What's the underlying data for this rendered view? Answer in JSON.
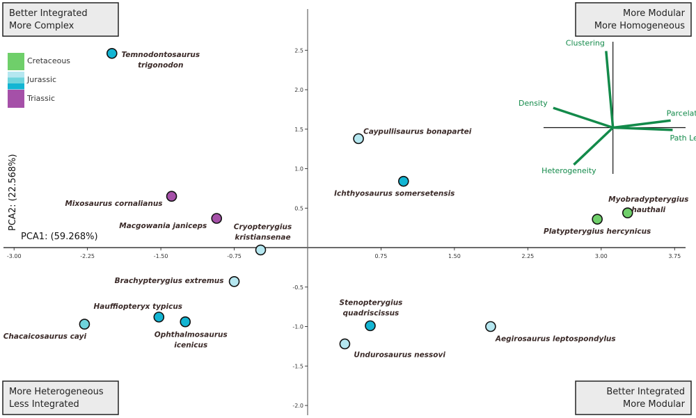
{
  "chart_data": {
    "type": "scatter",
    "xlabel": "PCA1: (59.268%)",
    "ylabel": "PCA2: (22.568%)",
    "xlim": [
      -3.0,
      3.85
    ],
    "ylim": [
      -2.1,
      3.0
    ],
    "x_ticks": [
      "-3.00",
      "-2.25",
      "-1.50",
      "-0.75",
      "0.75",
      "1.50",
      "2.25",
      "3.00",
      "3.75"
    ],
    "y_ticks": [
      "2.5",
      "2.0",
      "1.5",
      "1.0",
      "0.5",
      "-0.5",
      "-1.0",
      "-1.5",
      "-2.0"
    ],
    "grid": false,
    "legend": {
      "placement": "top-left",
      "items": [
        {
          "label": "Cretaceous",
          "colors": [
            "#6fcf6a"
          ]
        },
        {
          "label": "Jurassic",
          "colors": [
            "#b5e7f0",
            "#6fd4dc",
            "#13b5d3"
          ]
        },
        {
          "label": "Triassic",
          "colors": [
            "#a550a8"
          ]
        }
      ]
    },
    "colors": {
      "Cretaceous": "#6fcf6a",
      "Jurassic-late": "#b5e7f0",
      "Jurassic-middle": "#6fd4dc",
      "Jurassic-early": "#13b5d3",
      "Triassic": "#a550a8",
      "loadings": "#138a4a",
      "label": "#3a2a28"
    },
    "points": [
      {
        "name": "Temnodontosaurus trigonodon",
        "lines": [
          "Temnodontosaurus",
          "trigonodon"
        ],
        "x": -2.0,
        "y": 2.46,
        "period": "Jurassic-early"
      },
      {
        "name": "Caypullisaurus bonapartei",
        "lines": [
          "Caypullisaurus bonapartei"
        ],
        "x": 0.52,
        "y": 1.38,
        "period": "Jurassic-late"
      },
      {
        "name": "Ichthyosaurus somersetensis",
        "lines": [
          "Ichthyosaurus somersetensis"
        ],
        "x": 0.98,
        "y": 0.84,
        "period": "Jurassic-early"
      },
      {
        "name": "Mixosaurus cornalianus",
        "lines": [
          "Mixosaurus cornalianus"
        ],
        "x": -1.39,
        "y": 0.65,
        "period": "Triassic"
      },
      {
        "name": "Macgowania janiceps",
        "lines": [
          "Macgowania janiceps"
        ],
        "x": -0.93,
        "y": 0.37,
        "period": "Triassic"
      },
      {
        "name": "Cryopterygius kristiansenae",
        "lines": [
          "Cryopterygius",
          "kristiansenae"
        ],
        "x": -0.48,
        "y": -0.03,
        "period": "Jurassic-late"
      },
      {
        "name": "Platypterygius hercynicus",
        "lines": [
          "Platypterygius hercynicus"
        ],
        "x": 2.96,
        "y": 0.36,
        "period": "Cretaceous"
      },
      {
        "name": "Myobradypterygius hauthali",
        "lines": [
          "Myobradypterygius",
          "hauthali"
        ],
        "x": 3.27,
        "y": 0.44,
        "period": "Cretaceous"
      },
      {
        "name": "Brachypterygius extremus",
        "lines": [
          "Brachypterygius extremus"
        ],
        "x": -0.75,
        "y": -0.43,
        "period": "Jurassic-late"
      },
      {
        "name": "Hauffiopteryx typicus",
        "lines": [
          "Hauffiopteryx typicus"
        ],
        "x": -1.52,
        "y": -0.88,
        "period": "Jurassic-early"
      },
      {
        "name": "Ophthalmosaurus icenicus",
        "lines": [
          "Ophthalmosaurus",
          "icenicus"
        ],
        "x": -1.25,
        "y": -0.94,
        "period": "Jurassic-early"
      },
      {
        "name": "Chacaicosaurus cayi",
        "lines": [
          "Chacaicosaurus cayi"
        ],
        "x": -2.28,
        "y": -0.97,
        "period": "Jurassic-middle"
      },
      {
        "name": "Stenopterygius quadriscissus",
        "lines": [
          "Stenopterygius",
          "quadriscissus"
        ],
        "x": 0.64,
        "y": -0.99,
        "period": "Jurassic-early"
      },
      {
        "name": "Undurosaurus nessovi",
        "lines": [
          "Undurosaurus nessovi"
        ],
        "x": 0.38,
        "y": -1.22,
        "period": "Jurassic-late"
      },
      {
        "name": "Aegirosaurus leptospondylus",
        "lines": [
          "Aegirosaurus leptospondylus"
        ],
        "x": 1.87,
        "y": -1.0,
        "period": "Jurassic-late"
      }
    ],
    "loadings": {
      "origin": [
        3.12,
        1.52
      ],
      "vectors": [
        {
          "name": "Clustering",
          "x": 3.05,
          "y": 2.49
        },
        {
          "name": "Density",
          "x": 2.51,
          "y": 1.77
        },
        {
          "name": "Parcelation",
          "x": 3.71,
          "y": 1.61
        },
        {
          "name": "Path Length",
          "x": 3.73,
          "y": 1.49
        },
        {
          "name": "Heterogeneity",
          "x": 2.72,
          "y": 1.05
        }
      ]
    },
    "quadrants": {
      "top_left": [
        "Better Integrated",
        "More Complex"
      ],
      "top_right": [
        "More Modular",
        "More Homogeneous"
      ],
      "bottom_left": [
        "More Heterogeneous",
        "Less Integrated"
      ],
      "bottom_right": [
        "Better Integrated",
        "More Modular"
      ]
    }
  }
}
